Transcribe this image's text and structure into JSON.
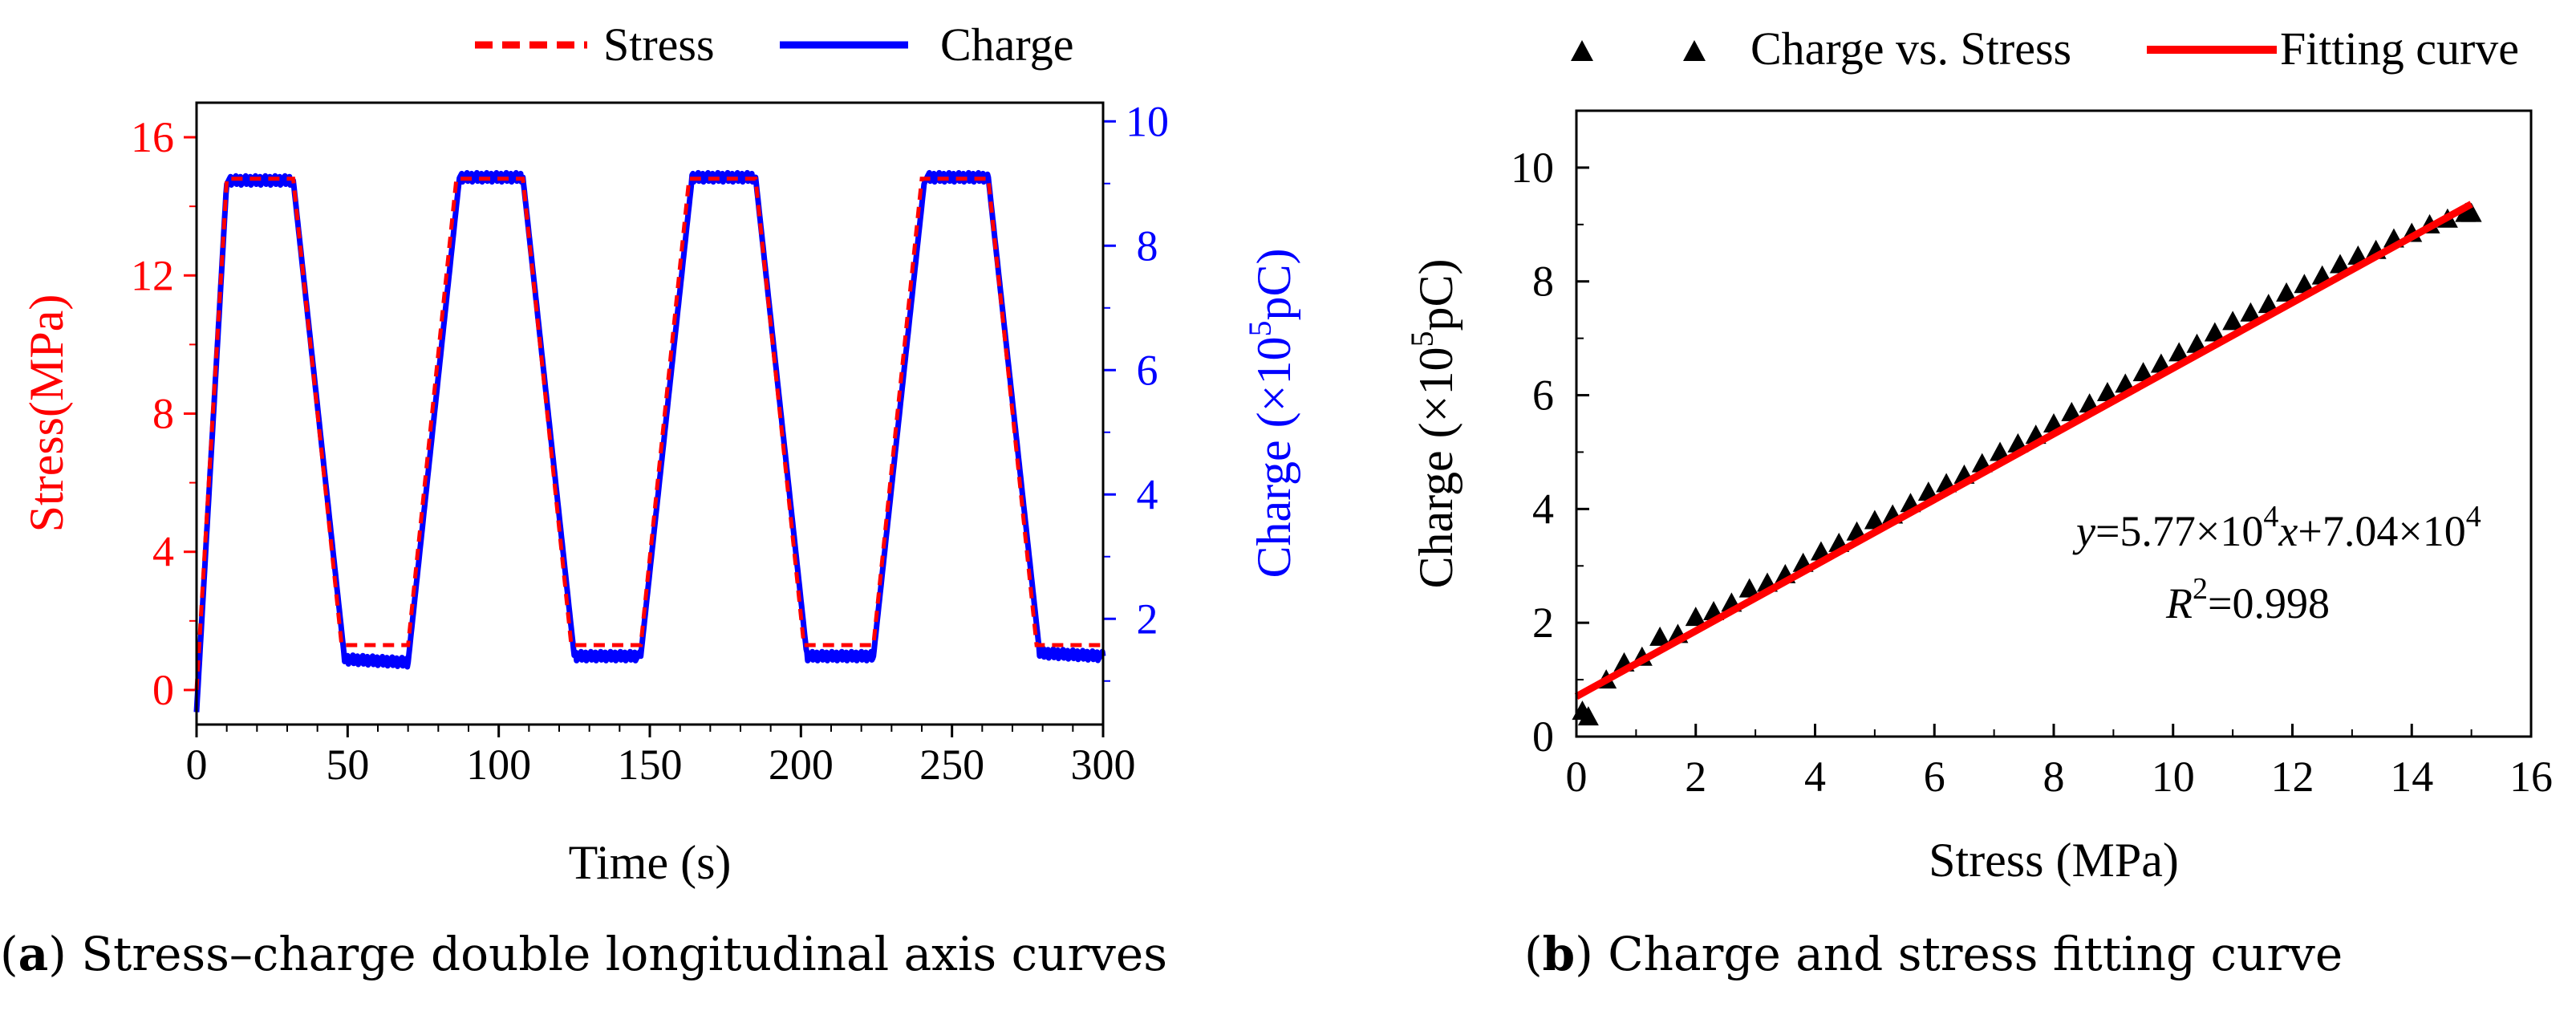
{
  "captions": {
    "a_letter": "a",
    "a_text": " Stress–charge double longitudinal axis curves",
    "b_letter": "b",
    "b_text": " Charge and stress fitting curve"
  },
  "colors": {
    "stress": "#ff0000",
    "charge": "#0000ff",
    "scatter": "#000000",
    "fit": "#ff0000"
  },
  "chart_data": [
    {
      "type": "line",
      "id": "a",
      "xlabel": "Time (s)",
      "ylabel_left": "Stress(MPa)",
      "ylabel_right_pre": "Charge (×10",
      "ylabel_right_sup": "5",
      "ylabel_right_post": "pC)",
      "xlim": [
        0,
        300
      ],
      "ylim_left": [
        -1,
        17
      ],
      "ylim_right": [
        0.3,
        10.3
      ],
      "xticks": [
        0,
        50,
        100,
        150,
        200,
        250,
        300
      ],
      "yticks_left": [
        0,
        4,
        8,
        12,
        16
      ],
      "yticks_right": [
        2,
        4,
        6,
        8,
        10
      ],
      "legend": [
        "Stress",
        "Charge"
      ],
      "series": [
        {
          "name": "Stress",
          "axis": "left",
          "style": "dashed",
          "x": [
            0,
            10,
            32,
            48,
            70,
            86,
            108,
            124,
            147,
            163,
            185,
            201,
            224,
            240,
            262,
            278,
            300
          ],
          "y": [
            0,
            14.8,
            14.8,
            1.3,
            1.3,
            14.8,
            14.8,
            1.3,
            1.3,
            14.8,
            14.8,
            1.3,
            1.3,
            14.8,
            14.8,
            1.3,
            1.3
          ]
        },
        {
          "name": "Charge",
          "axis": "right",
          "style": "solid",
          "x": [
            0,
            10,
            32,
            49,
            70,
            87,
            108,
            125,
            147,
            164,
            185,
            202,
            224,
            241,
            262,
            279,
            300
          ],
          "y": [
            0.5,
            9.05,
            9.05,
            1.35,
            1.3,
            9.1,
            9.1,
            1.4,
            1.4,
            9.1,
            9.1,
            1.4,
            1.4,
            9.1,
            9.1,
            1.45,
            1.4
          ]
        }
      ]
    },
    {
      "type": "scatter",
      "id": "b",
      "xlabel": "Stress  (MPa)",
      "ylabel_pre": "Charge (×10",
      "ylabel_sup": "5",
      "ylabel_post": "pC)",
      "xlim": [
        0,
        16
      ],
      "ylim": [
        0,
        11
      ],
      "xticks": [
        0,
        2,
        4,
        6,
        8,
        10,
        12,
        14,
        16
      ],
      "yticks": [
        0,
        2,
        4,
        6,
        8,
        10
      ],
      "legend": [
        "Charge vs. Stress",
        "Fitting curve"
      ],
      "equation": {
        "y_var": "y",
        "eq1": "=5.77×10",
        "exp1": "4",
        "x_var": "x",
        "eq2": "+7.04×10",
        "exp2": "4",
        "r_var": "R",
        "r_exp": "2",
        "r_val": "=0.998"
      },
      "fit": {
        "slope": 0.577,
        "intercept": 0.704,
        "x": [
          0,
          15
        ]
      },
      "points": {
        "x": [
          0.1,
          0.2,
          0.5,
          0.8,
          1.1,
          1.4,
          1.7,
          2.0,
          2.3,
          2.6,
          2.9,
          3.2,
          3.5,
          3.8,
          4.1,
          4.4,
          4.7,
          5.0,
          5.3,
          5.6,
          5.9,
          6.2,
          6.5,
          6.8,
          7.1,
          7.4,
          7.7,
          8.0,
          8.3,
          8.6,
          8.9,
          9.2,
          9.5,
          9.8,
          10.1,
          10.4,
          10.7,
          11.0,
          11.3,
          11.6,
          11.9,
          12.2,
          12.5,
          12.8,
          13.1,
          13.4,
          13.7,
          14.0,
          14.3,
          14.6,
          14.9,
          15.0
        ],
        "y": [
          0.45,
          0.35,
          1.0,
          1.3,
          1.4,
          1.75,
          1.8,
          2.1,
          2.2,
          2.35,
          2.6,
          2.7,
          2.85,
          3.05,
          3.25,
          3.4,
          3.6,
          3.8,
          3.9,
          4.1,
          4.3,
          4.45,
          4.6,
          4.8,
          5.0,
          5.15,
          5.3,
          5.5,
          5.7,
          5.85,
          6.05,
          6.2,
          6.4,
          6.55,
          6.75,
          6.9,
          7.1,
          7.3,
          7.45,
          7.6,
          7.8,
          7.95,
          8.1,
          8.3,
          8.45,
          8.55,
          8.75,
          8.85,
          9.0,
          9.1,
          9.2,
          9.2
        ]
      }
    }
  ]
}
